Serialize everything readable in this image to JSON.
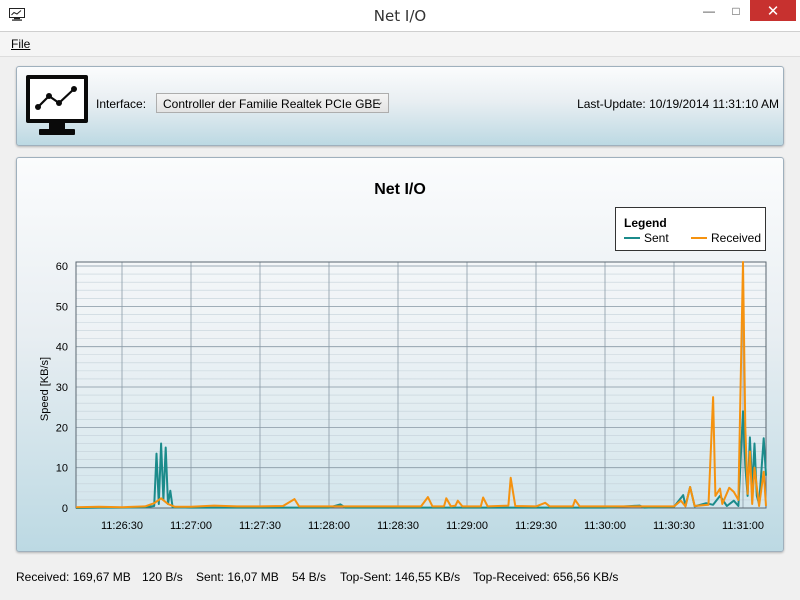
{
  "window": {
    "title": "Net I/O",
    "minimize": "—",
    "maximize": "□",
    "close": "✕",
    "app_icon": "monitor-icon"
  },
  "menu": {
    "file": "File"
  },
  "toolbar": {
    "interface_label": "Interface:",
    "interface_value": "Controller der Familie Realtek PCIe GBE",
    "last_update": "Last-Update: 10/19/2014 11:31:10 AM"
  },
  "colors": {
    "sent": "#1b8b8b",
    "received": "#f5920f",
    "grid": "#8a9aa6",
    "minor_grid": "#c4d1d9"
  },
  "legend": {
    "title": "Legend",
    "sent": "Sent",
    "received": "Received"
  },
  "status": {
    "received": "Received: 169,67 MB",
    "received_rate": "120 B/s",
    "sent": "Sent: 16,07 MB",
    "sent_rate": "54 B/s",
    "top_sent": "Top-Sent: 146,55 KB/s",
    "top_received": "Top-Received: 656,56 KB/s"
  },
  "chart_data": {
    "type": "line",
    "title": "Net I/O",
    "xlabel": "",
    "ylabel": "Speed [KB/s]",
    "ylim": [
      0,
      61
    ],
    "xlim": [
      "11:26:10",
      "11:31:10"
    ],
    "yticks": [
      0,
      10,
      20,
      30,
      40,
      50,
      60
    ],
    "xticks": [
      "11:26:30",
      "11:27:00",
      "11:27:30",
      "11:28:00",
      "11:28:30",
      "11:29:00",
      "11:29:30",
      "11:30:00",
      "11:30:30",
      "11:31:00"
    ],
    "grid": true,
    "legend_position": "top-right",
    "series": [
      {
        "name": "Sent",
        "points": [
          [
            "11:26:10",
            0
          ],
          [
            "11:26:20",
            0.1
          ],
          [
            "11:26:30",
            0.1
          ],
          [
            "11:26:40",
            0.2
          ],
          [
            "11:26:44",
            0.5
          ],
          [
            "11:26:45",
            13.5
          ],
          [
            "11:26:46",
            1
          ],
          [
            "11:26:47",
            16
          ],
          [
            "11:26:48",
            2
          ],
          [
            "11:26:49",
            15
          ],
          [
            "11:26:50",
            1
          ],
          [
            "11:26:51",
            4.3
          ],
          [
            "11:26:52",
            0.2
          ],
          [
            "11:27:00",
            0.1
          ],
          [
            "11:27:30",
            0.1
          ],
          [
            "11:28:00",
            0.1
          ],
          [
            "11:28:05",
            0.9
          ],
          [
            "11:28:07",
            0.1
          ],
          [
            "11:28:30",
            0.1
          ],
          [
            "11:29:00",
            0.1
          ],
          [
            "11:29:30",
            0.1
          ],
          [
            "11:30:00",
            0.1
          ],
          [
            "11:30:15",
            0.6
          ],
          [
            "11:30:17",
            0.1
          ],
          [
            "11:30:30",
            0.3
          ],
          [
            "11:30:34",
            3.2
          ],
          [
            "11:30:35",
            0.5
          ],
          [
            "11:30:37",
            5.2
          ],
          [
            "11:30:39",
            0.4
          ],
          [
            "11:30:44",
            1.2
          ],
          [
            "11:30:47",
            0.8
          ],
          [
            "11:30:50",
            3
          ],
          [
            "11:30:53",
            0.5
          ],
          [
            "11:30:56",
            1.8
          ],
          [
            "11:30:58",
            0.5
          ],
          [
            "11:31:00",
            24
          ],
          [
            "11:31:01",
            10.5
          ],
          [
            "11:31:02",
            3
          ],
          [
            "11:31:03",
            17.5
          ],
          [
            "11:31:04",
            5
          ],
          [
            "11:31:05",
            16
          ],
          [
            "11:31:06",
            3
          ],
          [
            "11:31:07",
            1
          ],
          [
            "11:31:09",
            17.3
          ],
          [
            "11:31:10",
            8
          ]
        ]
      },
      {
        "name": "Received",
        "points": [
          [
            "11:26:10",
            0.2
          ],
          [
            "11:26:20",
            0.3
          ],
          [
            "11:26:30",
            0.2
          ],
          [
            "11:26:40",
            0.4
          ],
          [
            "11:26:44",
            1.2
          ],
          [
            "11:26:47",
            2.4
          ],
          [
            "11:26:50",
            1
          ],
          [
            "11:26:53",
            0.3
          ],
          [
            "11:27:00",
            0.3
          ],
          [
            "11:27:10",
            0.6
          ],
          [
            "11:27:20",
            0.4
          ],
          [
            "11:27:30",
            0.4
          ],
          [
            "11:27:40",
            0.5
          ],
          [
            "11:27:45",
            2.2
          ],
          [
            "11:27:47",
            0.4
          ],
          [
            "11:28:00",
            0.4
          ],
          [
            "11:28:30",
            0.4
          ],
          [
            "11:28:40",
            0.4
          ],
          [
            "11:28:43",
            2.7
          ],
          [
            "11:28:45",
            0.4
          ],
          [
            "11:28:50",
            0.4
          ],
          [
            "11:28:51",
            2.4
          ],
          [
            "11:28:53",
            0.4
          ],
          [
            "11:28:55",
            0.6
          ],
          [
            "11:28:56",
            1.8
          ],
          [
            "11:28:58",
            0.4
          ],
          [
            "11:29:06",
            0.4
          ],
          [
            "11:29:07",
            2.6
          ],
          [
            "11:29:09",
            0.4
          ],
          [
            "11:29:18",
            0.6
          ],
          [
            "11:29:19",
            7.5
          ],
          [
            "11:29:21",
            0.5
          ],
          [
            "11:29:30",
            0.4
          ],
          [
            "11:29:34",
            1.3
          ],
          [
            "11:29:36",
            0.4
          ],
          [
            "11:29:46",
            0.4
          ],
          [
            "11:29:47",
            2
          ],
          [
            "11:29:49",
            0.4
          ],
          [
            "11:30:00",
            0.4
          ],
          [
            "11:30:30",
            0.4
          ],
          [
            "11:30:33",
            1.8
          ],
          [
            "11:30:35",
            0.4
          ],
          [
            "11:30:37",
            5.2
          ],
          [
            "11:30:39",
            0.5
          ],
          [
            "11:30:45",
            0.8
          ],
          [
            "11:30:47",
            27.5
          ],
          [
            "11:30:48",
            3
          ],
          [
            "11:30:50",
            4.8
          ],
          [
            "11:30:51",
            1
          ],
          [
            "11:30:54",
            5
          ],
          [
            "11:30:56",
            4
          ],
          [
            "11:30:58",
            2
          ],
          [
            "11:31:00",
            61
          ],
          [
            "11:31:01",
            20
          ],
          [
            "11:31:02",
            3.5
          ],
          [
            "11:31:03",
            14
          ],
          [
            "11:31:04",
            1
          ],
          [
            "11:31:05",
            10
          ],
          [
            "11:31:07",
            0.5
          ],
          [
            "11:31:09",
            9
          ],
          [
            "11:31:10",
            0.5
          ]
        ]
      }
    ]
  }
}
